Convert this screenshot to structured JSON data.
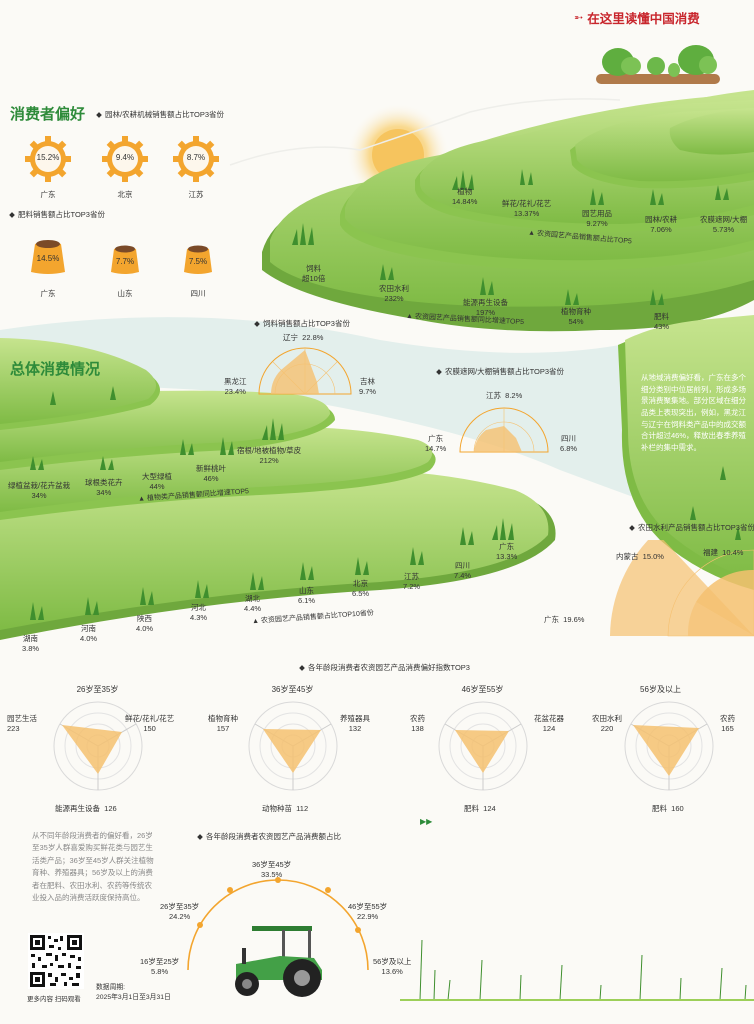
{
  "header": {
    "text": "在这里读懂中国消费",
    "brand": "中国消费"
  },
  "preference": {
    "title": "消费者偏好",
    "machinery": {
      "title": "园林/农耕机械销售额占比TOP3省份",
      "items": [
        {
          "value": "15.2%",
          "name": "广东"
        },
        {
          "value": "9.4%",
          "name": "北京"
        },
        {
          "value": "8.7%",
          "name": "江苏"
        }
      ]
    },
    "fertilizer": {
      "title": "肥料销售额占比TOP3省份",
      "items": [
        {
          "value": "14.5%",
          "name": "广东"
        },
        {
          "value": "7.7%",
          "name": "山东"
        },
        {
          "value": "7.5%",
          "name": "四川"
        }
      ]
    }
  },
  "terrace_top": {
    "share_caption": "农资园艺产品销售额占比TOP5",
    "share": [
      {
        "name": "植物",
        "value": "14.84%"
      },
      {
        "name": "鲜花/花礼/花艺",
        "value": "13.37%"
      },
      {
        "name": "园艺用品",
        "value": "9.27%"
      },
      {
        "name": "园林/农耕",
        "value": "7.06%"
      },
      {
        "name": "农膜遮网/大棚",
        "value": "5.73%"
      }
    ],
    "growth_caption": "农资园艺产品销售额同比增速TOP5",
    "growth": [
      {
        "name": "饲料",
        "value": "超10倍"
      },
      {
        "name": "农田水利",
        "value": "232%"
      },
      {
        "name": "能源再生设备",
        "value": "197%"
      },
      {
        "name": "植物育种",
        "value": "54%"
      },
      {
        "name": "肥料",
        "value": "43%"
      }
    ]
  },
  "feed": {
    "title": "饲料销售额占比TOP3省份",
    "items": [
      {
        "name": "辽宁",
        "value": "22.8%"
      },
      {
        "name": "黑龙江",
        "value": "23.4%"
      },
      {
        "name": "吉林",
        "value": "9.7%"
      }
    ]
  },
  "greenhouse": {
    "title": "农膜遮网/大棚销售额占比TOP3省份",
    "items": [
      {
        "name": "江苏",
        "value": "8.2%"
      },
      {
        "name": "广东",
        "value": "14.7%"
      },
      {
        "name": "四川",
        "value": "6.8%"
      }
    ]
  },
  "overall": {
    "title": "总体消费情况",
    "plant_caption": "植物类产品销售额同比增速TOP5",
    "plants": [
      {
        "name": "绿植盆栽/花卉盆栽",
        "value": "34%"
      },
      {
        "name": "球根类花卉",
        "value": "34%"
      },
      {
        "name": "大型绿植",
        "value": "44%"
      },
      {
        "name": "新鲜桃叶",
        "value": "46%"
      },
      {
        "name": "宿根/地被植物/草皮",
        "value": "212%"
      }
    ],
    "prov_caption": "农资园艺产品销售额占比TOP10省份",
    "provinces": [
      {
        "name": "湖南",
        "value": "3.8%"
      },
      {
        "name": "河南",
        "value": "4.0%"
      },
      {
        "name": "陕西",
        "value": "4.0%"
      },
      {
        "name": "河北",
        "value": "4.3%"
      },
      {
        "name": "湖北",
        "value": "4.4%"
      },
      {
        "name": "山东",
        "value": "6.1%"
      },
      {
        "name": "北京",
        "value": "6.5%"
      },
      {
        "name": "江苏",
        "value": "7.2%"
      },
      {
        "name": "四川",
        "value": "7.4%"
      },
      {
        "name": "广东",
        "value": "13.3%"
      }
    ]
  },
  "regional_text": "从地域消费偏好看，广东在多个细分类别中位居前列，形成多场景消费聚集地。部分区域在细分品类上表现突出，例如，黑龙江与辽宁在饲料类产品中的成交额合计超过46%，释放出春季养殖补栏的集中需求。",
  "irrigation": {
    "title": "农田水利产品销售额占比TOP3省份",
    "items": [
      {
        "name": "内蒙古",
        "value": "15.0%"
      },
      {
        "name": "福建",
        "value": "10.4%"
      },
      {
        "name": "广东",
        "value": "19.6%"
      }
    ]
  },
  "age_pref": {
    "title": "各年龄段消费者农资园艺产品消费偏好指数TOP3",
    "groups": [
      {
        "age": "26岁至35岁",
        "a": {
          "name": "园艺生活",
          "value": "223"
        },
        "b": {
          "name": "鲜花/花礼/花艺",
          "value": "150"
        },
        "c": {
          "name": "能源再生设备",
          "value": "126"
        }
      },
      {
        "age": "36岁至45岁",
        "a": {
          "name": "植物育种",
          "value": "157"
        },
        "b": {
          "name": "养殖器具",
          "value": "132"
        },
        "c": {
          "name": "动物种苗",
          "value": "112"
        }
      },
      {
        "age": "46岁至55岁",
        "a": {
          "name": "农药",
          "value": "138"
        },
        "b": {
          "name": "花盆花器",
          "value": "124"
        },
        "c": {
          "name": "肥料",
          "value": "124"
        }
      },
      {
        "age": "56岁及以上",
        "a": {
          "name": "农田水利",
          "value": "220"
        },
        "b": {
          "name": "农药",
          "value": "165"
        },
        "c": {
          "name": "肥料",
          "value": "160"
        }
      }
    ]
  },
  "age_text": "从不同年龄段消费者的偏好看，26岁至35岁人群喜爱购买鲜花类与园艺生活类产品；36岁至45岁人群关注植物育种、养殖器具；56岁及以上的消费者在肥料、农田水利、农药等传统农业投入品的消费活跃度保持高位。",
  "age_share": {
    "title": "各年龄段消费者农资园艺产品消费额占比",
    "items": [
      {
        "name": "16岁至25岁",
        "value": "5.8%"
      },
      {
        "name": "26岁至35岁",
        "value": "24.2%"
      },
      {
        "name": "36岁至45岁",
        "value": "33.5%"
      },
      {
        "name": "46岁至55岁",
        "value": "22.9%"
      },
      {
        "name": "56岁及以上",
        "value": "13.6%"
      }
    ]
  },
  "footer": {
    "qr_caption": "更多内容 扫码观看",
    "period_label": "数据周期:",
    "period": "2025年3月1日至3月31日"
  },
  "colors": {
    "green": "#2e8b3a",
    "terrace": "#9ccf58",
    "chart": "#f5c170",
    "gear": "#f3a52e"
  }
}
